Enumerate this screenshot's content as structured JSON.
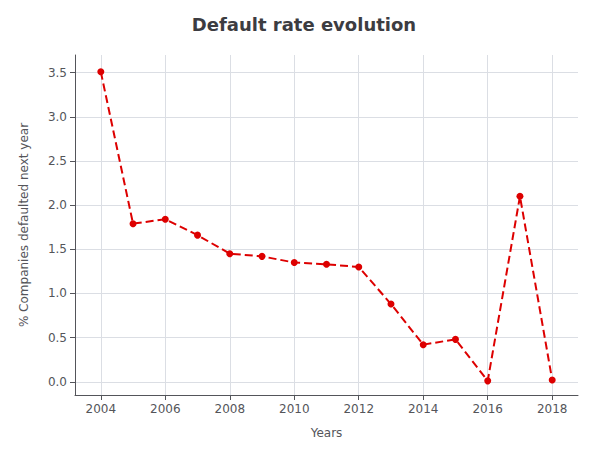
{
  "chart_data": {
    "type": "line",
    "title": "Default rate evolution",
    "xlabel": "Years",
    "ylabel": "% Companies defaulted next year",
    "x": [
      2004,
      2005,
      2006,
      2007,
      2008,
      2009,
      2010,
      2011,
      2012,
      2013,
      2014,
      2015,
      2016,
      2017,
      2018
    ],
    "values": [
      3.51,
      1.79,
      1.84,
      1.66,
      1.45,
      1.42,
      1.35,
      1.33,
      1.3,
      0.88,
      0.42,
      0.48,
      0.01,
      2.1,
      0.02
    ],
    "color": "#dd0000",
    "marker": "circle",
    "line_style": "dashed",
    "xlim": [
      2003.2,
      2018.8
    ],
    "xticks": [
      2004,
      2006,
      2008,
      2010,
      2012,
      2014,
      2016,
      2018
    ],
    "ylim": [
      -0.15,
      3.7
    ],
    "yticks": [
      {
        "value": 0,
        "label": "0.0"
      },
      0.5,
      {
        "value": 1,
        "label": "1.0"
      },
      1.5,
      {
        "value": 2,
        "label": "2.0"
      },
      2.5,
      {
        "value": 3,
        "label": "3.0"
      },
      3.5
    ],
    "grid": true
  }
}
